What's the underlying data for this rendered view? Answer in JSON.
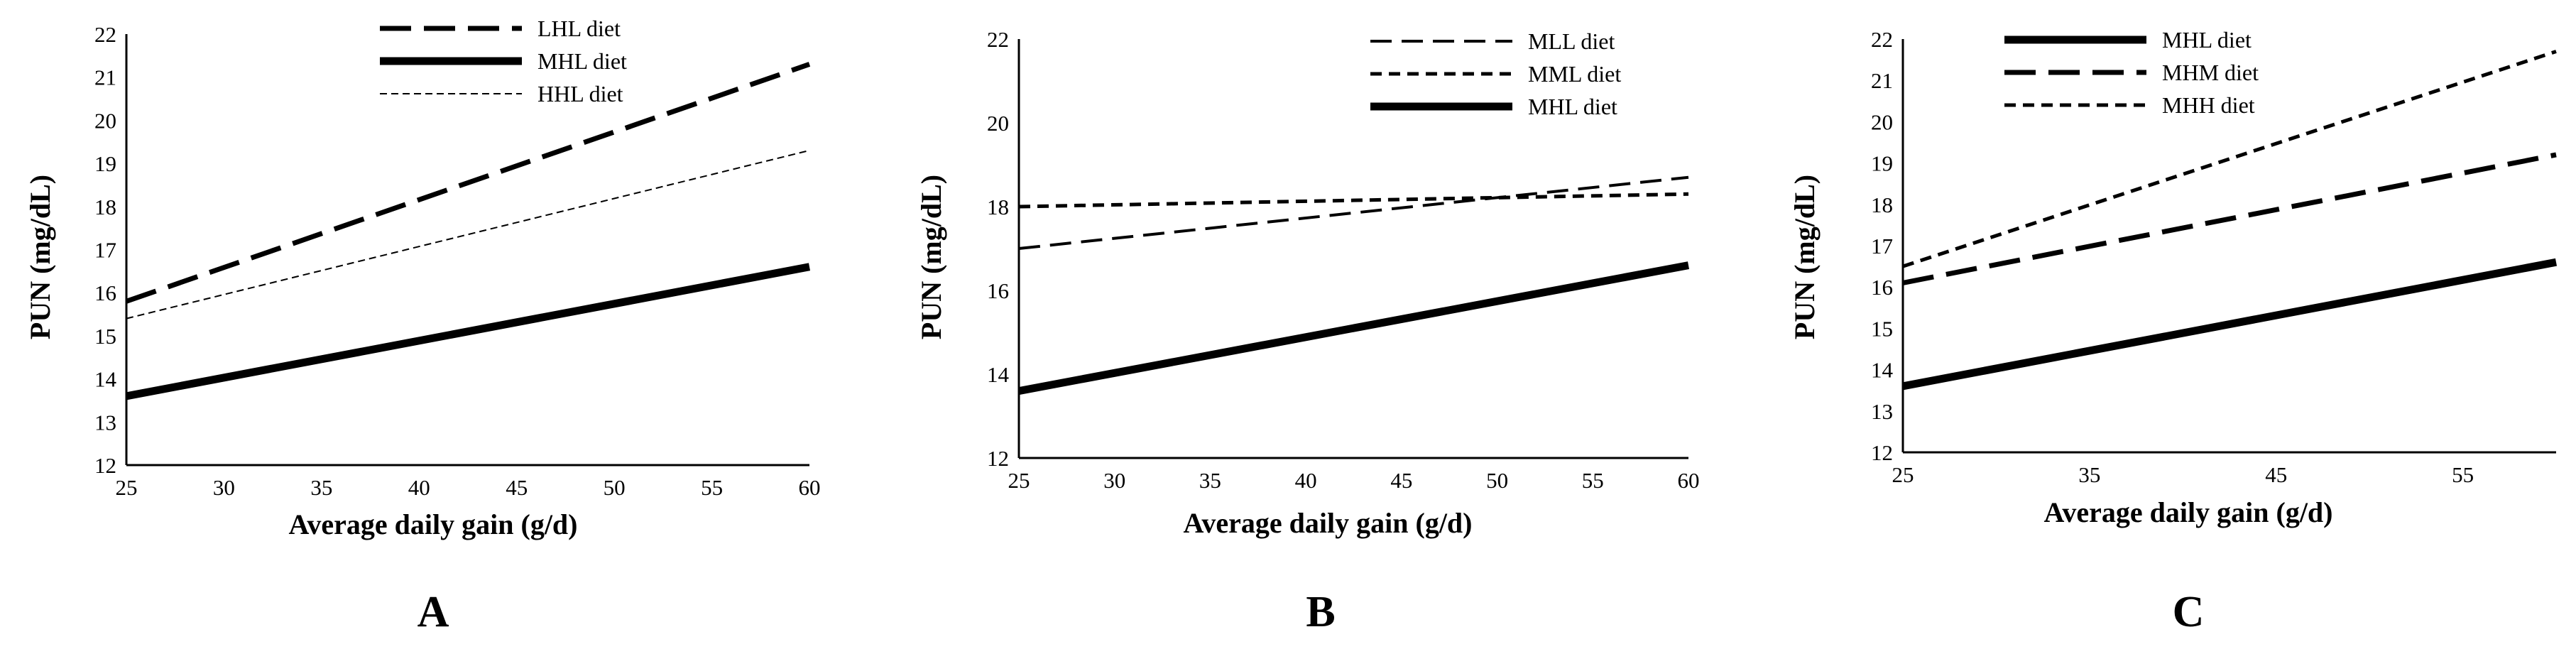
{
  "chart_data": [
    {
      "type": "line",
      "panel_label": "A",
      "xlabel": "Average daily gain (g/d)",
      "ylabel": "PUN (mg/dL)",
      "xlim": [
        25,
        60
      ],
      "ylim": [
        12,
        22
      ],
      "xticks": [
        25,
        30,
        35,
        40,
        45,
        50,
        55,
        60
      ],
      "yticks": [
        12,
        13,
        14,
        15,
        16,
        17,
        18,
        19,
        20,
        21,
        22
      ],
      "legend_position": "top-center",
      "series": [
        {
          "name": "LHL diet",
          "style": "long-dash",
          "x": [
            25,
            60
          ],
          "y": [
            15.8,
            21.3
          ]
        },
        {
          "name": "MHL diet",
          "style": "solid-thick",
          "x": [
            25,
            60
          ],
          "y": [
            13.6,
            16.6
          ]
        },
        {
          "name": "HHL diet",
          "style": "fine-dash",
          "x": [
            25,
            60
          ],
          "y": [
            15.4,
            19.3
          ]
        }
      ]
    },
    {
      "type": "line",
      "panel_label": "B",
      "xlabel": "Average daily gain (g/d)",
      "ylabel": "PUN (mg/dL)",
      "xlim": [
        25,
        60
      ],
      "ylim": [
        12,
        22
      ],
      "xticks": [
        25,
        30,
        35,
        40,
        45,
        50,
        55,
        60
      ],
      "yticks": [
        12,
        14,
        16,
        18,
        20,
        22
      ],
      "legend_position": "top-right",
      "series": [
        {
          "name": "MLL diet",
          "style": "dash",
          "x": [
            25,
            60
          ],
          "y": [
            17.0,
            18.7
          ]
        },
        {
          "name": "MML diet",
          "style": "short-dash",
          "x": [
            25,
            60
          ],
          "y": [
            18.0,
            18.3
          ]
        },
        {
          "name": "MHL diet",
          "style": "solid-thick",
          "x": [
            25,
            60
          ],
          "y": [
            13.6,
            16.6
          ]
        }
      ]
    },
    {
      "type": "line",
      "panel_label": "C",
      "xlabel": "Average daily gain (g/d)",
      "ylabel": "PUN (mg/dL)",
      "xlim": [
        25,
        60
      ],
      "ylim": [
        12,
        22
      ],
      "xticks": [
        25,
        35,
        45,
        55
      ],
      "yticks": [
        12,
        13,
        14,
        15,
        16,
        17,
        18,
        19,
        20,
        21,
        22
      ],
      "legend_position": "top-left",
      "series": [
        {
          "name": "MHL diet",
          "style": "solid-thick",
          "x": [
            25,
            60
          ],
          "y": [
            13.6,
            16.6
          ]
        },
        {
          "name": "MHM diet",
          "style": "long-dash",
          "x": [
            25,
            60
          ],
          "y": [
            16.1,
            19.2
          ]
        },
        {
          "name": "MHH diet",
          "style": "short-dash",
          "x": [
            25,
            60
          ],
          "y": [
            16.5,
            21.7
          ]
        }
      ]
    }
  ]
}
